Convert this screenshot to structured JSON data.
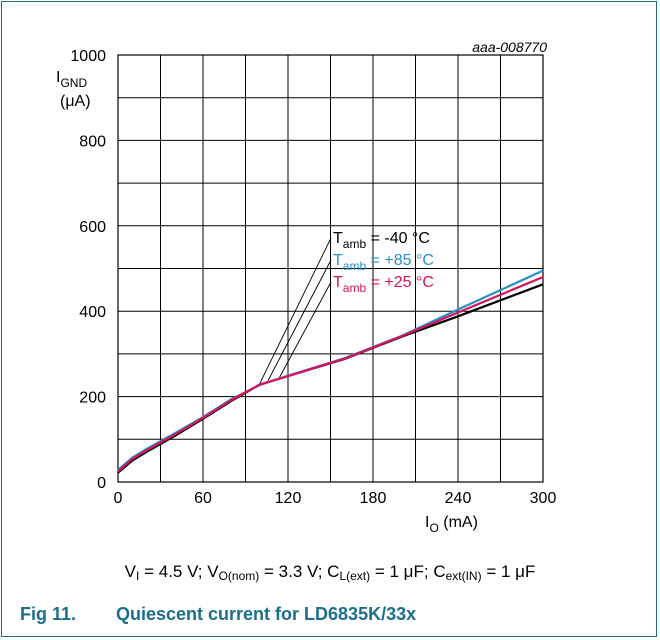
{
  "figure_id": "aaa-008770",
  "caption": {
    "number": "Fig 11.",
    "title": "Quiescent current for LD6835K/33x"
  },
  "conditions": {
    "vi": {
      "sym": "V",
      "sub": "I",
      "val": " = 4.5 V; "
    },
    "vo": {
      "sym": "V",
      "sub": "O(nom)",
      "val": " = 3.3 V; "
    },
    "cl": {
      "sym": "C",
      "sub": "L(ext)",
      "val": " = 1 μF; "
    },
    "cin": {
      "sym": "C",
      "sub": "ext(IN)",
      "val": " = 1 μF"
    }
  },
  "colors": {
    "frame": "#1c6e8c",
    "caption": "#1c6e8c",
    "t_minus40": "#000000",
    "t_plus85": "#2a8fc4",
    "t_plus25": "#d6135f",
    "grid": "#000000"
  },
  "chart_data": {
    "type": "line",
    "xlabel": {
      "main": "I",
      "sub": "O",
      "rest": " (mA)"
    },
    "ylabel": {
      "main": "I",
      "sub": "GND",
      "line2": "(μA)"
    },
    "xlim": [
      0,
      300
    ],
    "ylim": [
      0,
      1000
    ],
    "xticks": [
      0,
      60,
      120,
      180,
      240,
      300
    ],
    "yticks": [
      0,
      200,
      400,
      600,
      800,
      1000
    ],
    "grid": true,
    "series": [
      {
        "name": "T_amb = -40 °C",
        "label_main": "T",
        "label_sub": "amb",
        "label_val": " =  -40 °C",
        "color": "#000000",
        "x": [
          0,
          10,
          20,
          40,
          60,
          80,
          100,
          120,
          160,
          200,
          240,
          300
        ],
        "y": [
          22,
          50,
          70,
          108,
          148,
          190,
          228,
          248,
          288,
          340,
          388,
          463
        ]
      },
      {
        "name": "T_amb = +85 °C",
        "label_main": "T",
        "label_sub": "amb",
        "label_val": " =  +85 °C",
        "color": "#2a8fc4",
        "x": [
          0,
          10,
          20,
          40,
          60,
          80,
          100,
          120,
          160,
          200,
          240,
          300
        ],
        "y": [
          28,
          57,
          77,
          114,
          152,
          194,
          227,
          249,
          290,
          342,
          404,
          495
        ]
      },
      {
        "name": "T_amb = +25 °C",
        "label_main": "T",
        "label_sub": "amb",
        "label_val": " =  +25 °C",
        "color": "#d6135f",
        "x": [
          0,
          10,
          20,
          40,
          60,
          80,
          100,
          120,
          160,
          200,
          240,
          300
        ],
        "y": [
          25,
          54,
          74,
          111,
          150,
          192,
          228,
          248,
          289,
          341,
          397,
          480
        ]
      }
    ]
  }
}
